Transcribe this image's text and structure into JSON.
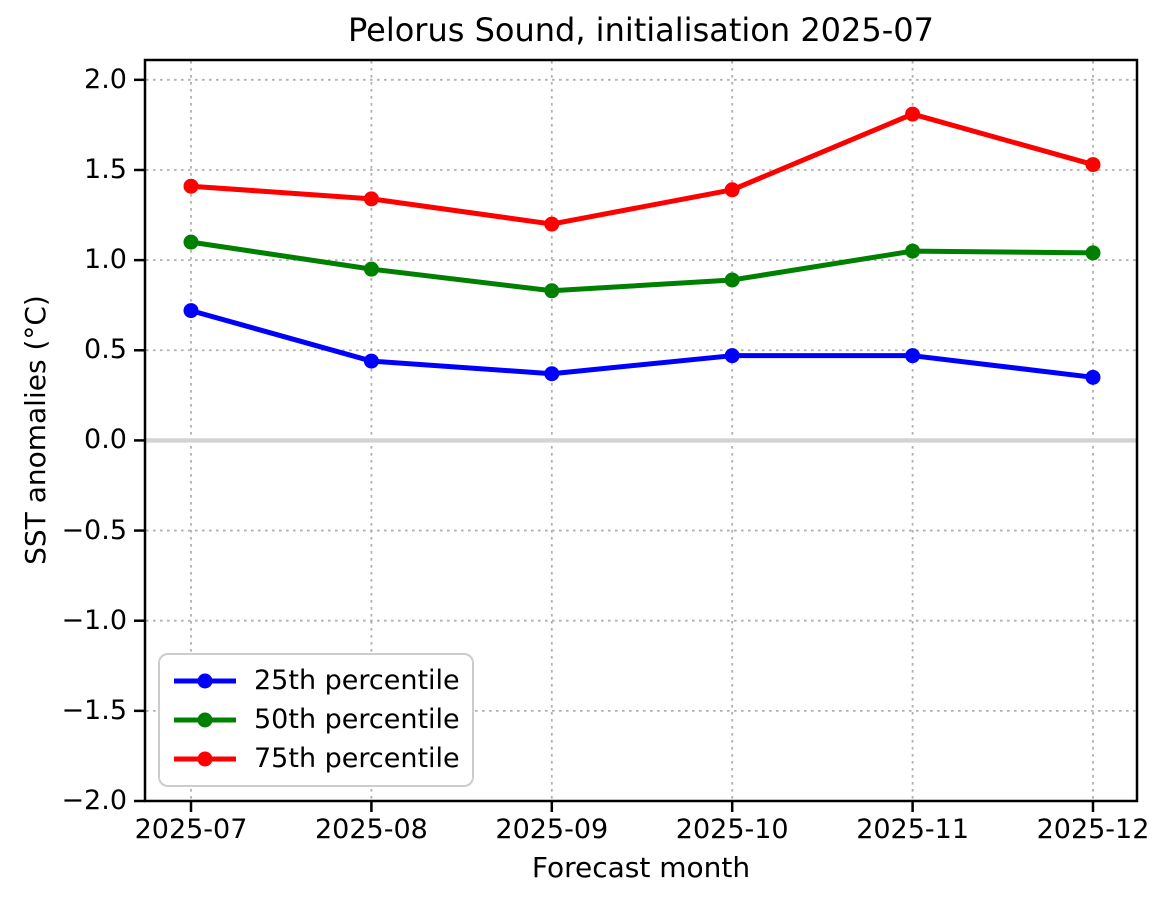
{
  "figure": {
    "background": "#ffffff"
  },
  "chart_data": {
    "type": "line",
    "title": "Pelorus Sound, initialisation 2025-07",
    "xlabel": "Forecast month",
    "ylabel": "SST anomalies (°C)",
    "categories": [
      "2025-07",
      "2025-08",
      "2025-09",
      "2025-10",
      "2025-11",
      "2025-12"
    ],
    "series": [
      {
        "name": "25th percentile",
        "color": "#0000ff",
        "values": [
          0.72,
          0.44,
          0.37,
          0.47,
          0.47,
          0.35
        ]
      },
      {
        "name": "50th percentile",
        "color": "#008000",
        "values": [
          1.1,
          0.95,
          0.83,
          0.89,
          1.05,
          1.04
        ]
      },
      {
        "name": "75th percentile",
        "color": "#ff0000",
        "values": [
          1.41,
          1.34,
          1.2,
          1.39,
          1.81,
          1.53
        ]
      }
    ],
    "ylim": [
      -2.0,
      2.11
    ],
    "yticks": [
      2.0,
      1.5,
      1.0,
      0.5,
      0.0,
      -0.5,
      -1.0,
      -1.5,
      -2.0
    ],
    "ytick_labels": [
      "2.0",
      "1.5",
      "1.0",
      "0.5",
      "0.0",
      "−0.5",
      "−1.0",
      "−1.5",
      "−2.0"
    ],
    "grid": true,
    "grid_style": "dotted",
    "zero_line": true,
    "legend_position": "lower left",
    "colors": {
      "grid": "#b0b0b0",
      "zero_line": "#d3d3d3",
      "spine": "#000000",
      "text": "#000000"
    }
  }
}
